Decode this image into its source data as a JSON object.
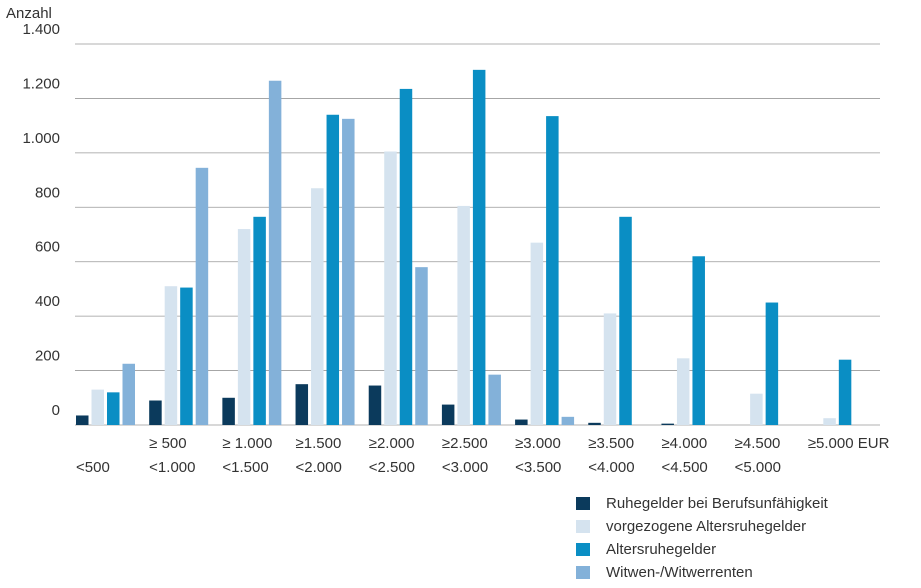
{
  "chart_data": {
    "type": "bar",
    "y_label": "Anzahl",
    "categories": [
      [
        "<500"
      ],
      [
        "≥ 500",
        "<1.000"
      ],
      [
        "≥ 1.000",
        "<1.500"
      ],
      [
        "≥1.500",
        "<2.000"
      ],
      [
        "≥2.000",
        "<2.500"
      ],
      [
        "≥2.500",
        "<3.000"
      ],
      [
        "≥3.000",
        "<3.500"
      ],
      [
        "≥3.500",
        "<4.000"
      ],
      [
        "≥4.000",
        "<4.500"
      ],
      [
        "≥4.500",
        "<5.000"
      ],
      [
        "≥5.000 EUR"
      ]
    ],
    "series": [
      {
        "name": "Ruhegelder bei Berufsunfähigkeit",
        "color": "#0b3a5c",
        "values": [
          35,
          90,
          100,
          150,
          145,
          75,
          20,
          8,
          5,
          0,
          0
        ]
      },
      {
        "name": "vorgezogene Altersruhegelder",
        "color": "#d5e3ef",
        "values": [
          130,
          510,
          720,
          870,
          1005,
          805,
          670,
          410,
          245,
          115,
          25
        ]
      },
      {
        "name": "Altersruhegelder",
        "color": "#0a8ec4",
        "values": [
          120,
          505,
          765,
          1140,
          1235,
          1305,
          1135,
          765,
          620,
          450,
          240
        ]
      },
      {
        "name": "Witwen-/Witwerrenten",
        "color": "#83b1d9",
        "values": [
          225,
          945,
          1265,
          1125,
          580,
          185,
          30,
          0,
          0,
          0,
          0
        ]
      }
    ],
    "ylim": [
      0,
      1400
    ],
    "yticks": [
      0,
      200,
      400,
      600,
      800,
      {
        "value": 1000,
        "label": "1.000"
      },
      {
        "value": 1200,
        "label": "1.200"
      },
      {
        "value": 1400,
        "label": "1.400"
      }
    ],
    "grid": true
  }
}
